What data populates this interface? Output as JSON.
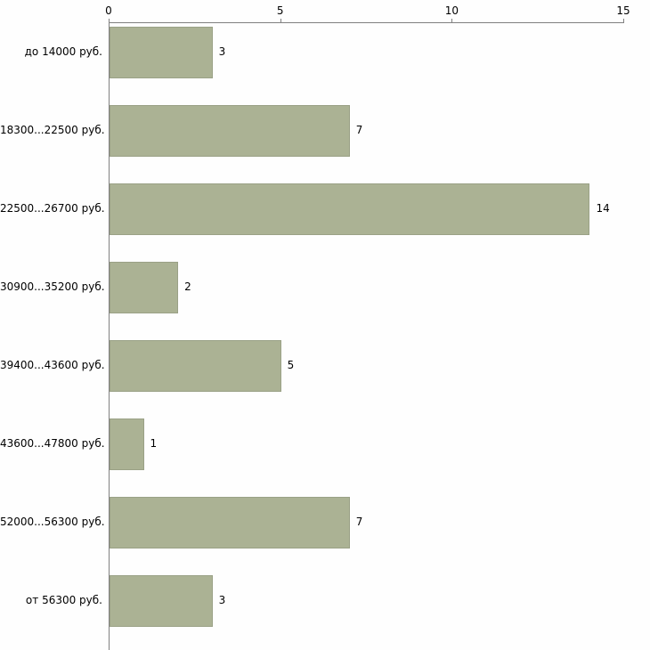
{
  "chart_data": {
    "type": "bar",
    "orientation": "horizontal",
    "title": "",
    "xlabel": "",
    "ylabel": "",
    "categories": [
      "до 14000 руб.",
      "18300...22500 руб.",
      "22500...26700 руб.",
      "30900...35200 руб.",
      "39400...43600 руб.",
      "43600...47800 руб.",
      "52000...56300 руб.",
      "от 56300 руб."
    ],
    "values": [
      3,
      7,
      14,
      2,
      5,
      1,
      7,
      3
    ],
    "value_labels": [
      "3",
      "7",
      "14",
      "2",
      "5",
      "1",
      "7",
      "3"
    ],
    "xlim": [
      0,
      15
    ],
    "xticks": [
      0,
      5,
      10,
      15
    ],
    "grid": false,
    "legend_position": "none",
    "colors": {
      "bar_fill": "#abb294",
      "bar_border": "#9aa186",
      "axis": "#808080",
      "text": "#000000",
      "background": "#fefefe"
    }
  }
}
